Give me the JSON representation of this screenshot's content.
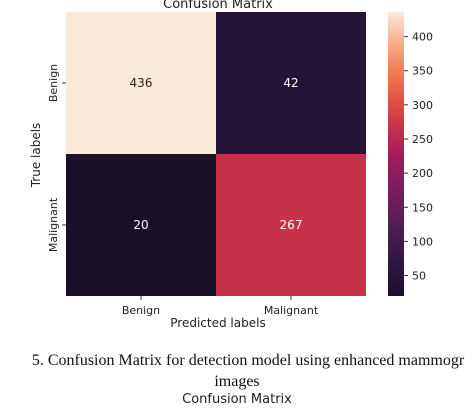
{
  "chart_data": {
    "type": "heatmap",
    "title": "Confusion Matrix",
    "xlabel": "Predicted labels",
    "ylabel": "True labels",
    "x_categories": [
      "Benign",
      "Malignant"
    ],
    "y_categories": [
      "Benign",
      "Malignant"
    ],
    "values": [
      [
        436,
        42
      ],
      [
        20,
        267
      ]
    ],
    "colorbar": {
      "ticks": [
        50,
        100,
        150,
        200,
        250,
        300,
        350,
        400
      ],
      "range": [
        20,
        436
      ]
    },
    "colormap": "rocket"
  },
  "caption": {
    "line1": "5. Confusion Matrix for detection model using enhanced  mammogr",
    "line2": "images",
    "next_title": "Confusion Matrix"
  }
}
